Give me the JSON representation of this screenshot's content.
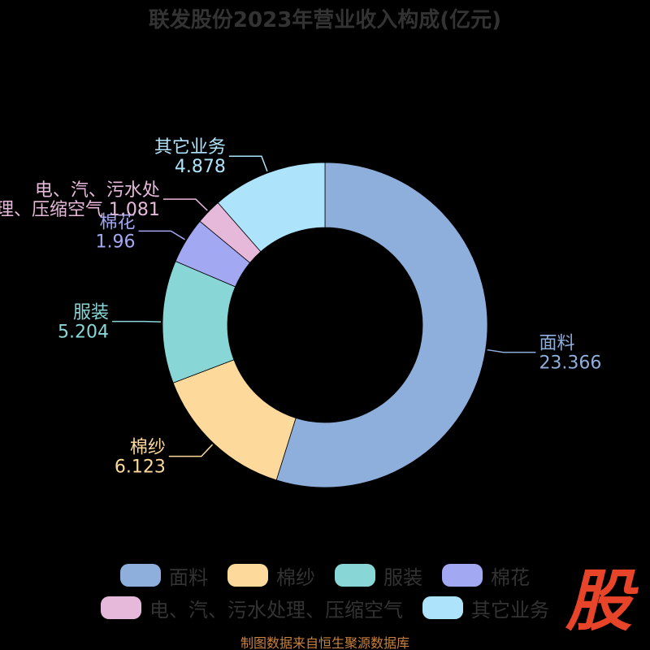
{
  "title": "联发股份2023年营业收入构成(亿元)",
  "source": "制图数据来自恒生聚源数据库",
  "logo_text": "股",
  "chart_data": {
    "type": "pie",
    "donut": true,
    "title": "联发股份2023年营业收入构成(亿元)",
    "series": [
      {
        "name": "面料",
        "value": 23.366,
        "value_label": "23.366",
        "color": "#8eaedb"
      },
      {
        "name": "棉纱",
        "value": 6.123,
        "value_label": "6.123",
        "color": "#fdd99b"
      },
      {
        "name": "服装",
        "value": 5.204,
        "value_label": "5.204",
        "color": "#89d6d6"
      },
      {
        "name": "棉花",
        "value": 1.96,
        "value_label": "1.96",
        "color": "#a3a8f3"
      },
      {
        "name": "电、汽、污水处理、压缩空气",
        "value": 1.081,
        "value_label": "1.081",
        "color": "#e6b9db"
      },
      {
        "name": "其它业务",
        "value": 4.878,
        "value_label": "4.878",
        "color": "#ade3fb"
      }
    ],
    "callout_lines": [
      [
        {
          "text": "面料"
        },
        {
          "text": "23.366"
        }
      ],
      [
        {
          "text": "棉纱"
        },
        {
          "text": "6.123"
        }
      ],
      [
        {
          "text": "服装"
        },
        {
          "text": "5.204"
        }
      ],
      [
        {
          "text": "棉花"
        },
        {
          "text": "1.96"
        }
      ],
      [
        {
          "text": "电、汽、污水处"
        },
        {
          "text": "理、压缩空气 1.081"
        }
      ],
      [
        {
          "text": "其它业务"
        },
        {
          "text": "4.878"
        }
      ]
    ],
    "legend": {
      "position": "bottom"
    }
  },
  "legend_items": [
    {
      "label": "面料"
    },
    {
      "label": "棉纱"
    },
    {
      "label": "服装"
    },
    {
      "label": "棉花"
    },
    {
      "label": "电、汽、污水处理、压缩空气"
    },
    {
      "label": "其它业务"
    }
  ]
}
